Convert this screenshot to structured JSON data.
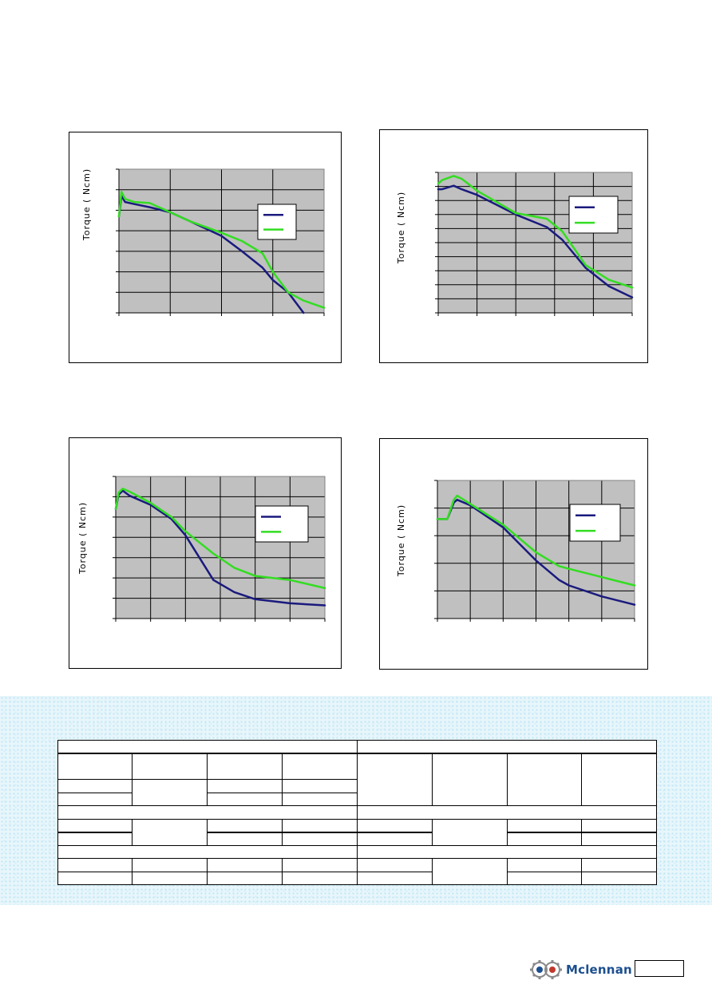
{
  "colors": {
    "series_a": "#1a1a7e",
    "series_b": "#33dd22",
    "plot_bg": "#c0c0c0",
    "band_bg": "#e8f6fb",
    "logo_blue": "#1d4f8f"
  },
  "chart_data": [
    {
      "type": "line",
      "ylabel": "Torque ( Ncm)",
      "xlim": [
        0,
        4
      ],
      "ylim": [
        0,
        7
      ],
      "grid": true,
      "legend": "right",
      "series": [
        {
          "x": [
            0,
            0.05,
            0.12,
            0.3,
            0.6,
            1.0,
            1.4,
            2.0,
            2.4,
            2.8,
            3.0,
            3.3,
            3.6
          ],
          "values": [
            4.7,
            5.7,
            5.4,
            5.3,
            5.15,
            4.9,
            4.45,
            3.75,
            3.0,
            2.2,
            1.6,
            1.0,
            0
          ]
        },
        {
          "x": [
            0,
            0.05,
            0.12,
            0.3,
            0.6,
            1.0,
            1.4,
            2.0,
            2.4,
            2.8,
            3.0,
            3.3,
            3.6,
            4.0
          ],
          "values": [
            4.7,
            5.9,
            5.55,
            5.4,
            5.35,
            4.9,
            4.45,
            3.9,
            3.5,
            2.9,
            2.0,
            1.0,
            0.6,
            0.25
          ]
        }
      ]
    },
    {
      "type": "line",
      "ylabel": "Torque ( Ncm)",
      "xlim": [
        0,
        5
      ],
      "ylim": [
        0,
        10
      ],
      "grid": true,
      "legend": "right",
      "series": [
        {
          "x": [
            0,
            0.1,
            0.4,
            0.6,
            1.0,
            2.0,
            2.8,
            3.2,
            3.8,
            4.4,
            5.0
          ],
          "values": [
            8.8,
            8.8,
            9.05,
            8.8,
            8.4,
            7.0,
            6.1,
            5.2,
            3.2,
            1.9,
            1.1
          ]
        },
        {
          "x": [
            0,
            0.1,
            0.4,
            0.6,
            1.0,
            2.0,
            2.8,
            3.2,
            3.8,
            4.4,
            5.0
          ],
          "values": [
            9.2,
            9.45,
            9.75,
            9.55,
            8.7,
            7.1,
            6.7,
            5.8,
            3.4,
            2.35,
            1.8
          ]
        }
      ]
    },
    {
      "type": "line",
      "ylabel": "Torque ( Ncm)",
      "xlim": [
        0,
        6
      ],
      "ylim": [
        0,
        7
      ],
      "grid": true,
      "legend": "right",
      "series": [
        {
          "x": [
            0,
            0.08,
            0.2,
            0.4,
            1.0,
            1.6,
            2.0,
            2.8,
            3.4,
            4.0,
            5.0,
            6.0
          ],
          "values": [
            5.4,
            6.1,
            6.3,
            6.05,
            5.6,
            4.9,
            4.1,
            1.9,
            1.3,
            0.95,
            0.75,
            0.65
          ]
        },
        {
          "x": [
            0,
            0.08,
            0.2,
            0.4,
            1.0,
            1.6,
            2.0,
            2.8,
            3.4,
            4.0,
            5.0,
            6.0
          ],
          "values": [
            5.4,
            6.2,
            6.4,
            6.25,
            5.7,
            5.0,
            4.3,
            3.2,
            2.5,
            2.1,
            1.9,
            1.5
          ]
        }
      ]
    },
    {
      "type": "line",
      "ylabel": "Torque ( Ncm)",
      "xlim": [
        0,
        6
      ],
      "ylim": [
        0,
        5
      ],
      "grid": true,
      "legend": "right",
      "series": [
        {
          "x": [
            0,
            0.3,
            0.5,
            0.6,
            1.0,
            2.0,
            3.0,
            3.7,
            4.0,
            5.0,
            6.0
          ],
          "values": [
            3.6,
            3.6,
            4.2,
            4.3,
            4.1,
            3.3,
            2.1,
            1.4,
            1.2,
            0.8,
            0.5
          ]
        },
        {
          "x": [
            0,
            0.3,
            0.5,
            0.6,
            1.0,
            2.0,
            3.0,
            3.7,
            4.0,
            5.0,
            6.0
          ],
          "values": [
            3.6,
            3.6,
            4.3,
            4.45,
            4.15,
            3.4,
            2.4,
            1.9,
            1.8,
            1.5,
            1.2
          ]
        }
      ]
    }
  ],
  "logo": {
    "name": "Mclennan"
  },
  "page_number": ""
}
